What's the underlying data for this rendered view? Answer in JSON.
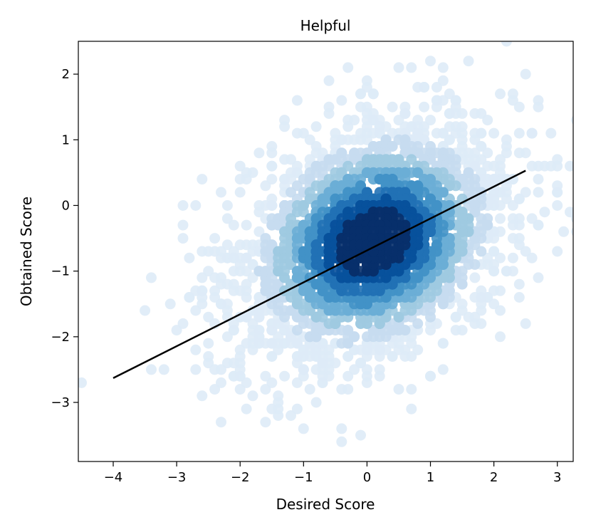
{
  "chart_data": {
    "type": "scatter",
    "title": "Helpful",
    "xlabel": "Desired Score",
    "ylabel": "Obtained Score",
    "xlim": [
      -4.55,
      3.25
    ],
    "ylim": [
      -3.9,
      2.5
    ],
    "xticks": [
      -4,
      -3,
      -2,
      -1,
      0,
      1,
      2,
      3
    ],
    "xtick_labels": [
      "−4",
      "−3",
      "−2",
      "−1",
      "0",
      "1",
      "2",
      "3"
    ],
    "yticks": [
      -3,
      -2,
      -1,
      0,
      1,
      2
    ],
    "ytick_labels": [
      "−3",
      "−2",
      "−1",
      "0",
      "1",
      "2"
    ],
    "grid": false,
    "density": {
      "center": [
        0.1,
        -0.55
      ],
      "spread": [
        1.1,
        0.95
      ],
      "correlation": 0.35,
      "colormap": [
        "#f7fbff",
        "#deebf7",
        "#c6dbef",
        "#9ecae1",
        "#6baed6",
        "#4292c6",
        "#2171b5",
        "#08519c",
        "#08306b"
      ]
    },
    "fit_line": {
      "x": [
        -4.0,
        2.5
      ],
      "y": [
        -2.63,
        0.53
      ],
      "color": "#000000"
    }
  }
}
